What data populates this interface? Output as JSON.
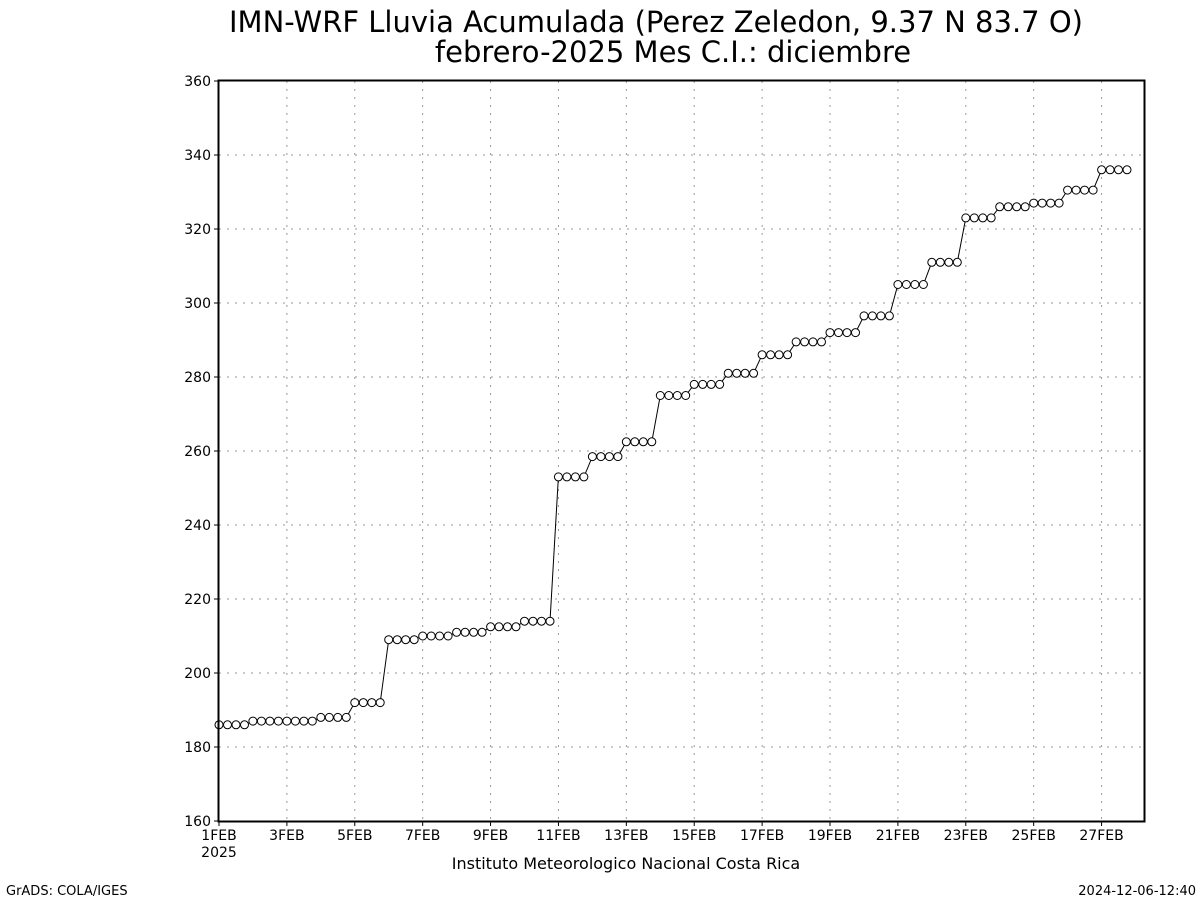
{
  "chart_data": {
    "type": "line",
    "title": "IMN-WRF  Lluvia Acumulada (Perez Zeledon, 9.37  N 83.7  O)",
    "subtitle": "febrero-2025 Mes C.I.: diciembre",
    "xlabel": "",
    "ylabel": "",
    "ylim": [
      160,
      360
    ],
    "yticks": [
      160,
      180,
      200,
      220,
      240,
      260,
      280,
      300,
      320,
      340,
      360
    ],
    "xlim": [
      1,
      28.25
    ],
    "xticks": [
      {
        "day": 1,
        "label": "1FEB",
        "sublabel": "2025"
      },
      {
        "day": 3,
        "label": "3FEB"
      },
      {
        "day": 5,
        "label": "5FEB"
      },
      {
        "day": 7,
        "label": "7FEB"
      },
      {
        "day": 9,
        "label": "9FEB"
      },
      {
        "day": 11,
        "label": "11FEB"
      },
      {
        "day": 13,
        "label": "13FEB"
      },
      {
        "day": 15,
        "label": "15FEB"
      },
      {
        "day": 17,
        "label": "17FEB"
      },
      {
        "day": 19,
        "label": "19FEB"
      },
      {
        "day": 21,
        "label": "21FEB"
      },
      {
        "day": 23,
        "label": "23FEB"
      },
      {
        "day": 25,
        "label": "25FEB"
      },
      {
        "day": 27,
        "label": "27FEB"
      }
    ],
    "grid": true,
    "marker": "open-circle",
    "line_color": "#000000",
    "x_step_days": 0.25,
    "x_start_day": 1,
    "values": [
      186,
      186,
      186,
      186,
      187,
      187,
      187,
      187,
      187,
      187,
      187,
      187,
      188,
      188,
      188,
      188,
      192,
      192,
      192,
      192,
      209,
      209,
      209,
      209,
      210,
      210,
      210,
      210,
      211,
      211,
      211,
      211,
      212.5,
      212.5,
      212.5,
      212.5,
      214,
      214,
      214,
      214,
      253,
      253,
      253,
      253,
      258.5,
      258.5,
      258.5,
      258.5,
      262.5,
      262.5,
      262.5,
      262.5,
      275,
      275,
      275,
      275,
      278,
      278,
      278,
      278,
      281,
      281,
      281,
      281,
      286,
      286,
      286,
      286,
      289.5,
      289.5,
      289.5,
      289.5,
      292,
      292,
      292,
      292,
      296.5,
      296.5,
      296.5,
      296.5,
      305,
      305,
      305,
      305,
      311,
      311,
      311,
      311,
      323,
      323,
      323,
      323,
      326,
      326,
      326,
      326,
      327,
      327,
      327,
      327,
      330.5,
      330.5,
      330.5,
      330.5,
      336,
      336,
      336,
      336
    ]
  },
  "footer": {
    "institution": "Instituto Meteorologico Nacional Costa Rica",
    "software": "GrADS: COLA/IGES",
    "timestamp": "2024-12-06-12:40"
  }
}
